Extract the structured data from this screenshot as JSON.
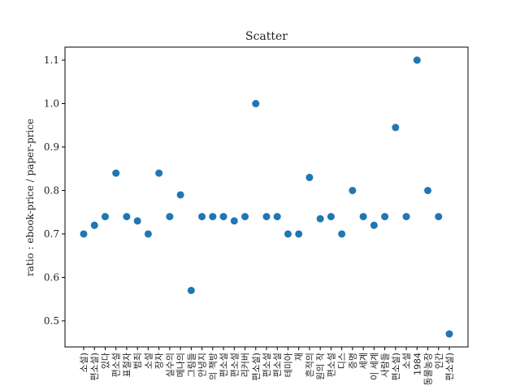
{
  "chart_data": {
    "type": "scatter",
    "title": "Scatter",
    "xlabel": "",
    "ylabel": "ratio : ebook-price / paper-price",
    "ylim": [
      0.44,
      1.13
    ],
    "yticks": [
      0.5,
      0.6,
      0.7,
      0.8,
      0.9,
      1.0,
      1.1
    ],
    "grid": false,
    "marker_color": "#1f77b4",
    "categories": [
      "소설)",
      "편소설)",
      "있다",
      "편소설",
      "표절자",
      "범죄",
      "소설",
      "장자",
      "실수의",
      "메나의",
      "그림들",
      "안녕지",
      "의 책방",
      "편소설",
      "편소설",
      "리커버",
      "편소설)",
      "편소설",
      "편소설",
      "테미아",
      "재",
      "흔적의",
      "원의 작",
      "편소설",
      "디스",
      "증명",
      "세계",
      "이 세계",
      "사람들",
      "편소설)",
      "소설",
      "1984",
      "동물농장",
      "인간",
      "편소설)"
    ],
    "values": [
      0.7,
      0.72,
      0.74,
      0.84,
      0.74,
      0.73,
      0.7,
      0.84,
      0.74,
      0.79,
      0.57,
      0.74,
      0.74,
      0.74,
      0.73,
      0.74,
      1.0,
      0.74,
      0.74,
      0.7,
      0.7,
      0.83,
      0.735,
      0.74,
      0.7,
      0.8,
      0.74,
      0.72,
      0.74,
      0.945,
      0.74,
      1.1,
      0.8,
      0.74,
      0.47
    ]
  }
}
